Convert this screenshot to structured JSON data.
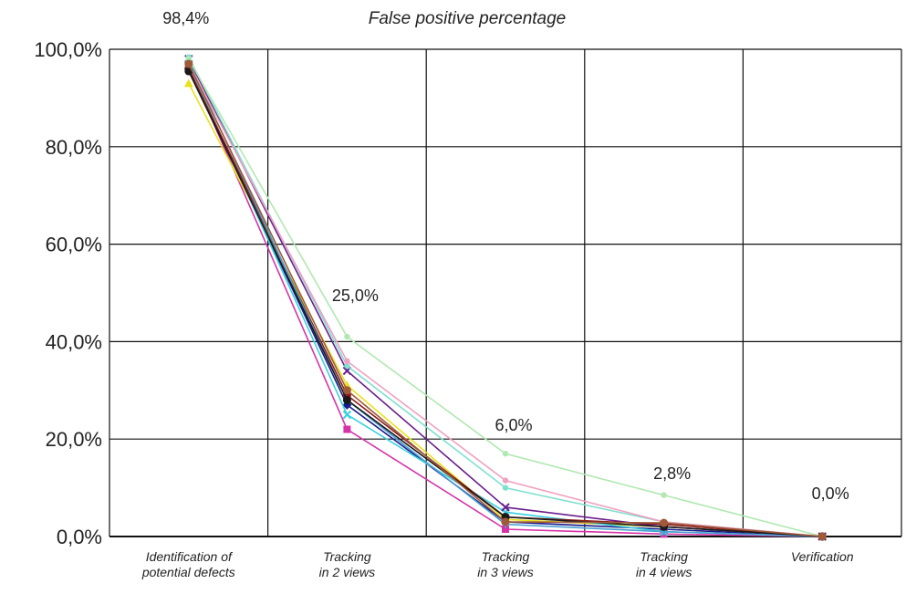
{
  "chart_data": {
    "type": "line",
    "title": "False positive percentage",
    "xlabel": "",
    "ylabel": "",
    "ylim": [
      0,
      100
    ],
    "yticks": [
      "0,0%",
      "20,0%",
      "40,0%",
      "60,0%",
      "80,0%",
      "100,0%"
    ],
    "categories": [
      [
        "Identification of",
        "potential defects"
      ],
      [
        "Tracking",
        "in 2 views"
      ],
      [
        "Tracking",
        "in 3 views"
      ],
      [
        "Tracking",
        "in 4 views"
      ],
      [
        "Verification"
      ]
    ],
    "data_labels": [
      "98,4%",
      "25,0%",
      "6,0%",
      "2,8%",
      "0,0%"
    ],
    "grid": true,
    "series": [
      {
        "color": "#1a1a8c",
        "marker": "diamond",
        "values": [
          96.0,
          27.0,
          3.0,
          1.5,
          0
        ]
      },
      {
        "color": "#d633a8",
        "marker": "square",
        "values": [
          96.5,
          22.0,
          1.5,
          0.5,
          0
        ]
      },
      {
        "color": "#e8e020",
        "marker": "triangle",
        "values": [
          93.0,
          31.0,
          3.5,
          2.0,
          0
        ]
      },
      {
        "color": "#3ad0e0",
        "marker": "x",
        "values": [
          97.0,
          25.0,
          5.0,
          1.0,
          0
        ]
      },
      {
        "color": "#6a1e8c",
        "marker": "x",
        "values": [
          98.0,
          34.0,
          6.0,
          2.0,
          0
        ]
      },
      {
        "color": "#8b1a1a",
        "marker": "circle",
        "values": [
          96.0,
          29.0,
          4.0,
          2.5,
          0
        ]
      },
      {
        "color": "#4aa0d0",
        "marker": "plus",
        "values": [
          97.5,
          28.0,
          2.5,
          1.0,
          0
        ]
      },
      {
        "color": "#80e0d0",
        "marker": "dot",
        "values": [
          98.4,
          35.0,
          10.0,
          3.0,
          0
        ]
      },
      {
        "color": "#f0a0c0",
        "marker": "dot",
        "values": [
          97.0,
          36.0,
          11.5,
          3.0,
          0
        ]
      },
      {
        "color": "#b0e8b0",
        "marker": "dot",
        "values": [
          98.0,
          41.0,
          17.0,
          8.5,
          0
        ]
      },
      {
        "color": "#1a1a1a",
        "marker": "circle",
        "values": [
          95.5,
          28.0,
          4.0,
          2.0,
          0
        ]
      },
      {
        "color": "#a05a3a",
        "marker": "circle",
        "values": [
          97.0,
          30.0,
          3.0,
          2.8,
          0
        ]
      }
    ]
  }
}
